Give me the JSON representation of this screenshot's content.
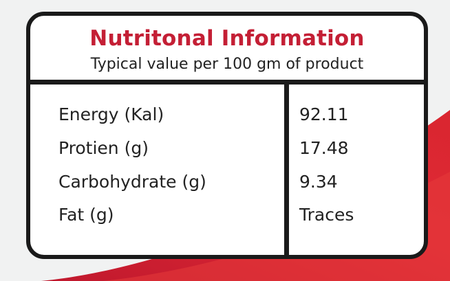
{
  "label": {
    "title": "Nutritonal Information",
    "subtitle": "Typical value per 100 gm of product",
    "rows": [
      {
        "name": "Energy (Kal)",
        "value": "92.11"
      },
      {
        "name": "Protien (g)",
        "value": "17.48"
      },
      {
        "name": "Carbohydrate (g)",
        "value": "9.34"
      },
      {
        "name": "Fat (g)",
        "value": "Traces"
      }
    ]
  },
  "colors": {
    "background": "#f1f2f2",
    "accent_red": "#c41f35",
    "border": "#1a1a1a"
  }
}
